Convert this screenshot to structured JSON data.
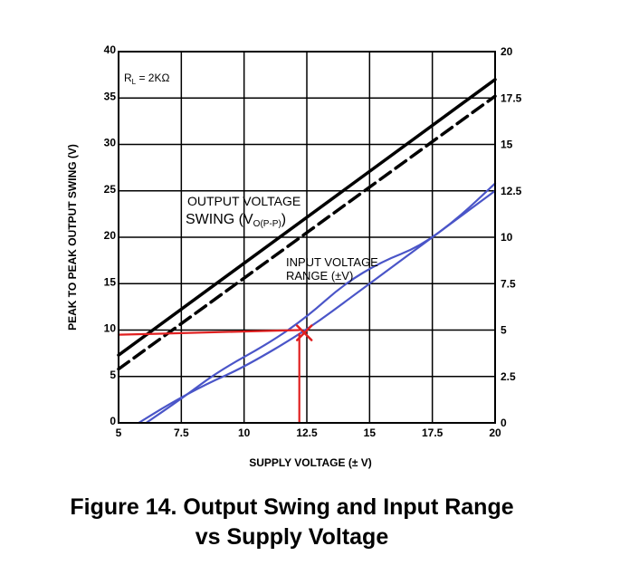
{
  "caption": {
    "line1": "Figure 14. Output Swing and Input Range",
    "line2": "vs Supply Voltage"
  },
  "chart_data": {
    "type": "line",
    "xlabel": "SUPPLY VOLTAGE (± V)",
    "ylabel": "PEAK TO PEAK OUTPUT SWING (V)",
    "xlim": [
      5,
      20
    ],
    "ylim": [
      0,
      40
    ],
    "y2lim": [
      0,
      20
    ],
    "x_ticks": [
      "5",
      "7.5",
      "10",
      "12.5",
      "15",
      "17.5",
      "20"
    ],
    "y_ticks": [
      "0",
      "5",
      "10",
      "15",
      "20",
      "25",
      "30",
      "35",
      "40"
    ],
    "y2_ticks": [
      "0",
      "2.5",
      "5",
      "7.5",
      "10",
      "12.5",
      "15",
      "17.5",
      "20"
    ],
    "grid": true,
    "condition_label": "R",
    "condition_sub": "L",
    "condition_value": " = 2KΩ",
    "annotations": {
      "output_line1": "OUTPUT VOLTAGE",
      "output_line2": "SWING (V",
      "output_sub": "O(P-P)",
      "output_close": ")",
      "input_line1": "INPUT VOLTAGE",
      "input_line2": "RANGE (±V)"
    },
    "series": [
      {
        "style": "solid",
        "color": "#000000",
        "axis": "left",
        "x": [
          5,
          20
        ],
        "y": [
          7.3,
          37
        ]
      },
      {
        "style": "dashed",
        "color": "#000000",
        "axis": "left",
        "x": [
          5,
          20
        ],
        "y": [
          5.8,
          35.2
        ]
      },
      {
        "style": "hand-drawn",
        "color": "#4a55c8",
        "axis": "right",
        "x": [
          6.1,
          7.5,
          9,
          11,
          12.5,
          14,
          15.5,
          17,
          18.5,
          20
        ],
        "y": [
          0,
          1.3,
          2.8,
          4.3,
          5.7,
          7.5,
          8.7,
          9.5,
          11,
          12.9
        ]
      },
      {
        "style": "hand-drawn",
        "color": "#4a55c8",
        "axis": "right",
        "x": [
          5.8,
          7,
          8.5,
          10,
          12.5,
          14.5,
          16.5,
          18.5,
          20
        ],
        "y": [
          0,
          1.0,
          2.1,
          3.0,
          5.0,
          7.0,
          9.0,
          11.0,
          12.5
        ]
      },
      {
        "style": "hand-drawn",
        "color": "#e02020",
        "axis": "left",
        "x": [
          5,
          8,
          12.2
        ],
        "y": [
          9.5,
          9.7,
          10
        ]
      },
      {
        "style": "hand-drawn",
        "color": "#e02020",
        "axis": "left",
        "x": [
          12.2,
          12.2
        ],
        "y": [
          9.6,
          0
        ]
      }
    ],
    "marker": {
      "symbol": "x",
      "color": "#e02020",
      "x": 12.4,
      "y": 9.7
    }
  }
}
